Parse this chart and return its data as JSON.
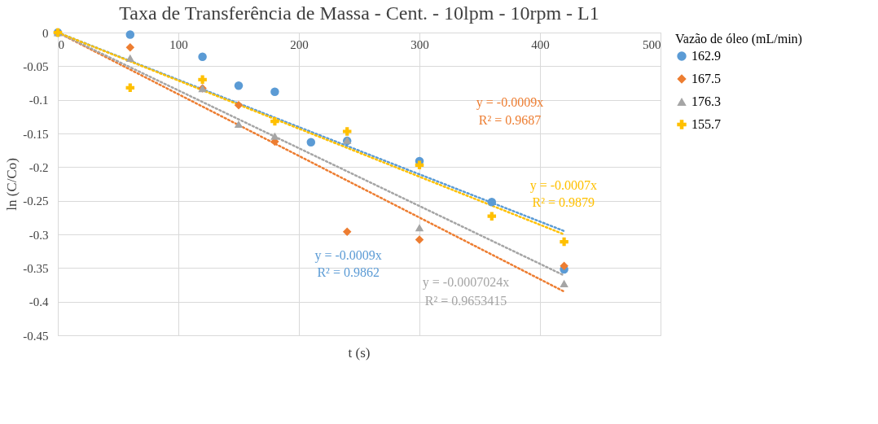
{
  "chart_data": {
    "type": "scatter",
    "title": "Taxa de Transferência de Massa - Cent. - 10lpm - 10rpm - L1",
    "xlabel": "t (s)",
    "ylabel": "ln (C/Co)",
    "legend_title": "Vazão de óleo (mL/min)",
    "xlim": [
      0,
      500
    ],
    "xticks": [
      0,
      100,
      200,
      300,
      400,
      500
    ],
    "ylim": [
      -0.45,
      0
    ],
    "yticks": [
      -0.45,
      -0.4,
      -0.35,
      -0.3,
      -0.25,
      -0.2,
      -0.15,
      -0.1,
      -0.05,
      0
    ],
    "grid": true,
    "legend": "right",
    "series": [
      {
        "name": "162.9",
        "color": "#5b9bd5",
        "marker": "circle",
        "x": [
          0,
          60,
          120,
          150,
          180,
          210,
          240,
          300,
          360,
          420
        ],
        "values": [
          0,
          -0.003,
          -0.036,
          -0.079,
          -0.088,
          -0.163,
          -0.161,
          -0.191,
          -0.252,
          -0.352
        ]
      },
      {
        "name": "167.5",
        "color": "#ed7d31",
        "marker": "diamond",
        "x": [
          0,
          60,
          120,
          150,
          180,
          240,
          300,
          420
        ],
        "values": [
          0,
          -0.022,
          -0.083,
          -0.108,
          -0.162,
          -0.296,
          -0.308,
          -0.347
        ]
      },
      {
        "name": "176.3",
        "color": "#a5a5a5",
        "marker": "triangle",
        "x": [
          0,
          60,
          120,
          150,
          180,
          240,
          300,
          420
        ],
        "values": [
          0,
          -0.038,
          -0.083,
          -0.136,
          -0.154,
          -0.16,
          -0.29,
          -0.373
        ]
      },
      {
        "name": "155.7",
        "color": "#ffc000",
        "marker": "cross",
        "x": [
          0,
          60,
          120,
          180,
          240,
          300,
          360,
          420
        ],
        "values": [
          0,
          -0.082,
          -0.07,
          -0.132,
          -0.147,
          -0.197,
          -0.273,
          -0.311
        ]
      },
      {
        "type": "line",
        "color": "#5b9bd5",
        "line_style": "dotted",
        "marker": "none",
        "x": [
          0,
          420
        ],
        "values": [
          0,
          -0.295
        ]
      },
      {
        "type": "line",
        "color": "#ed7d31",
        "line_style": "dotted",
        "marker": "none",
        "x": [
          0,
          420
        ],
        "values": [
          0,
          -0.385
        ]
      },
      {
        "type": "line",
        "color": "#a5a5a5",
        "line_style": "dotted",
        "marker": "none",
        "x": [
          0,
          420
        ],
        "values": [
          0,
          -0.361
        ]
      },
      {
        "type": "line",
        "color": "#ffc000",
        "line_style": "dotted",
        "marker": "none",
        "x": [
          0,
          420
        ],
        "values": [
          0,
          -0.3
        ]
      }
    ],
    "annotations": [
      "y = -0.0009x",
      "R² = 0.9862",
      "y = -0.0009x",
      "R² = 0.9687",
      "y = -0.0007024x",
      "R² = 0.9653415",
      "y = -0.0007x",
      "R² = 0.9879"
    ]
  }
}
